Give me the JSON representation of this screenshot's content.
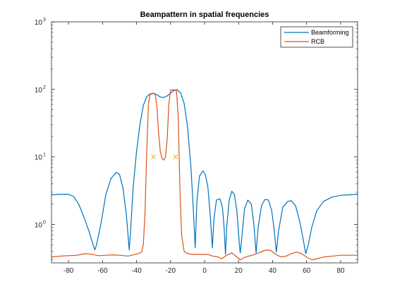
{
  "chart_data": {
    "type": "line",
    "title": "Beampattern in spatial frequencies",
    "xlabel": "",
    "ylabel": "",
    "xlim": [
      -90,
      90
    ],
    "ylim": [
      0.27,
      1000
    ],
    "yscale": "log",
    "grid": false,
    "legend_position": "top-right",
    "x_ticks": [
      -80,
      -60,
      -40,
      -20,
      0,
      20,
      40,
      60,
      80
    ],
    "y_ticks": [
      {
        "value": 1,
        "base": "10",
        "exp": "0"
      },
      {
        "value": 10,
        "base": "10",
        "exp": "1"
      },
      {
        "value": 100,
        "base": "10",
        "exp": "2"
      },
      {
        "value": 1000,
        "base": "10",
        "exp": "3"
      }
    ],
    "series": [
      {
        "name": "Beamforming",
        "color": "#0072BD",
        "points": [
          [
            -90,
            2.75
          ],
          [
            -85,
            2.8
          ],
          [
            -80,
            2.8
          ],
          [
            -77,
            2.6
          ],
          [
            -74,
            2.0
          ],
          [
            -71,
            1.3
          ],
          [
            -68,
            0.8
          ],
          [
            -65.5,
            0.5
          ],
          [
            -64.5,
            0.42
          ],
          [
            -63.5,
            0.5
          ],
          [
            -61,
            1.0
          ],
          [
            -58,
            2.8
          ],
          [
            -55,
            4.8
          ],
          [
            -52,
            5.9
          ],
          [
            -50,
            5.5
          ],
          [
            -48,
            3.5
          ],
          [
            -46,
            1.4
          ],
          [
            -45,
            0.7
          ],
          [
            -44.3,
            0.42
          ],
          [
            -43.5,
            0.8
          ],
          [
            -42,
            3.5
          ],
          [
            -40,
            12
          ],
          [
            -38,
            30
          ],
          [
            -36,
            58
          ],
          [
            -34,
            78
          ],
          [
            -32,
            86
          ],
          [
            -30,
            88
          ],
          [
            -28,
            83
          ],
          [
            -26,
            77
          ],
          [
            -24,
            76
          ],
          [
            -22,
            80
          ],
          [
            -20,
            88
          ],
          [
            -18,
            97
          ],
          [
            -16,
            99
          ],
          [
            -14,
            88
          ],
          [
            -12,
            62
          ],
          [
            -10,
            28
          ],
          [
            -8,
            7
          ],
          [
            -6.5,
            1.5
          ],
          [
            -5.5,
            0.45
          ],
          [
            -4.5,
            2.2
          ],
          [
            -3,
            5.2
          ],
          [
            -1,
            6.2
          ],
          [
            0.5,
            5.5
          ],
          [
            2,
            3.5
          ],
          [
            3.5,
            1.2
          ],
          [
            4.6,
            0.45
          ],
          [
            5.5,
            1.2
          ],
          [
            7,
            2.3
          ],
          [
            9,
            2.4
          ],
          [
            10.5,
            1.8
          ],
          [
            11.5,
            0.9
          ],
          [
            12.3,
            0.36
          ],
          [
            13,
            0.9
          ],
          [
            14.5,
            2.3
          ],
          [
            16,
            3.1
          ],
          [
            17.5,
            2.8
          ],
          [
            19,
            1.6
          ],
          [
            20.5,
            0.5
          ],
          [
            21,
            0.38
          ],
          [
            21.8,
            0.6
          ],
          [
            23.5,
            1.7
          ],
          [
            25.5,
            2.3
          ],
          [
            27.5,
            2.0
          ],
          [
            29,
            1.0
          ],
          [
            30.3,
            0.38
          ],
          [
            31.5,
            0.9
          ],
          [
            33.5,
            1.9
          ],
          [
            35.5,
            2.35
          ],
          [
            37.5,
            2.3
          ],
          [
            39.5,
            1.6
          ],
          [
            41,
            0.8
          ],
          [
            42.2,
            0.39
          ],
          [
            43.5,
            0.8
          ],
          [
            46,
            1.8
          ],
          [
            49,
            2.2
          ],
          [
            51,
            2.25
          ],
          [
            53.5,
            1.9
          ],
          [
            56,
            1.1
          ],
          [
            58,
            0.6
          ],
          [
            59.5,
            0.37
          ],
          [
            61,
            0.5
          ],
          [
            63,
            0.9
          ],
          [
            66,
            1.6
          ],
          [
            70,
            2.2
          ],
          [
            75,
            2.55
          ],
          [
            80,
            2.7
          ],
          [
            85,
            2.75
          ],
          [
            90,
            2.8
          ]
        ]
      },
      {
        "name": "RCB",
        "color": "#D95319",
        "points": [
          [
            -90,
            0.33
          ],
          [
            -85,
            0.34
          ],
          [
            -80,
            0.345
          ],
          [
            -75,
            0.35
          ],
          [
            -70,
            0.37
          ],
          [
            -66,
            0.36
          ],
          [
            -62,
            0.345
          ],
          [
            -58,
            0.35
          ],
          [
            -54,
            0.355
          ],
          [
            -50,
            0.35
          ],
          [
            -47,
            0.345
          ],
          [
            -45,
            0.34
          ],
          [
            -43,
            0.35
          ],
          [
            -41,
            0.36
          ],
          [
            -39,
            0.37
          ],
          [
            -37,
            0.39
          ],
          [
            -36,
            0.5
          ],
          [
            -35,
            1.5
          ],
          [
            -34,
            12
          ],
          [
            -33,
            60
          ],
          [
            -32,
            85
          ],
          [
            -30,
            87
          ],
          [
            -29,
            85
          ],
          [
            -28,
            55
          ],
          [
            -27,
            22
          ],
          [
            -26,
            12
          ],
          [
            -25,
            9.5
          ],
          [
            -24,
            9
          ],
          [
            -23,
            10
          ],
          [
            -22,
            18
          ],
          [
            -21,
            60
          ],
          [
            -20,
            97
          ],
          [
            -18,
            99
          ],
          [
            -16.5,
            95
          ],
          [
            -15.5,
            40
          ],
          [
            -14.5,
            3.5
          ],
          [
            -13.5,
            0.7
          ],
          [
            -12,
            0.4
          ],
          [
            -10,
            0.37
          ],
          [
            -7,
            0.36
          ],
          [
            -4,
            0.36
          ],
          [
            -1,
            0.36
          ],
          [
            2,
            0.36
          ],
          [
            5,
            0.34
          ],
          [
            8,
            0.33
          ],
          [
            10,
            0.31
          ],
          [
            13,
            0.35
          ],
          [
            16,
            0.38
          ],
          [
            19,
            0.33
          ],
          [
            21,
            0.3
          ],
          [
            24,
            0.33
          ],
          [
            28,
            0.35
          ],
          [
            32,
            0.38
          ],
          [
            35,
            0.41
          ],
          [
            37,
            0.42
          ],
          [
            39,
            0.41
          ],
          [
            42,
            0.36
          ],
          [
            45,
            0.33
          ],
          [
            48,
            0.34
          ],
          [
            51,
            0.37
          ],
          [
            54,
            0.39
          ],
          [
            57,
            0.37
          ],
          [
            60,
            0.33
          ],
          [
            63,
            0.3
          ],
          [
            66,
            0.31
          ],
          [
            70,
            0.33
          ],
          [
            75,
            0.34
          ],
          [
            80,
            0.35
          ],
          [
            85,
            0.35
          ],
          [
            90,
            0.35
          ]
        ]
      }
    ],
    "markers": {
      "symbol": "×",
      "color": "#EDB120",
      "points": [
        [
          -30,
          10
        ],
        [
          -17,
          10
        ]
      ]
    }
  }
}
